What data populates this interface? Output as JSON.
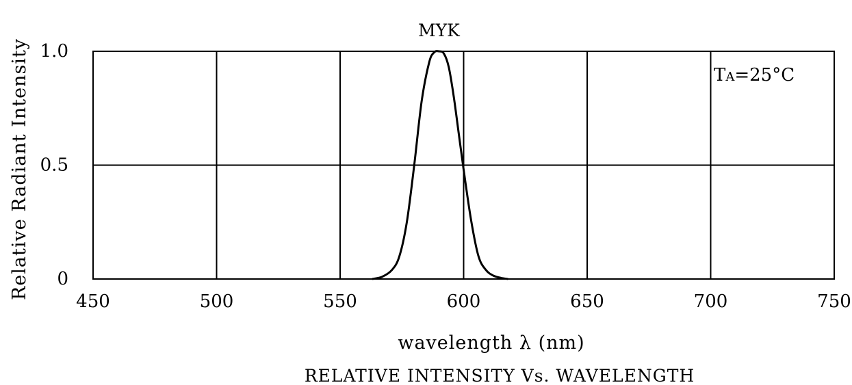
{
  "chart_data": {
    "type": "line",
    "title": "RELATIVE INTENSITY Vs. WAVELENGTH",
    "xlabel": "wavelength λ (nm)",
    "ylabel": "Relative Radiant Intensity",
    "xlim": [
      450,
      750
    ],
    "ylim": [
      0,
      1.0
    ],
    "x_ticks": [
      "450",
      "500",
      "550",
      "600",
      "650",
      "700",
      "750"
    ],
    "y_ticks": [
      "0",
      "0.5",
      "1.0"
    ],
    "x_tick_values": [
      450,
      500,
      550,
      600,
      650,
      700,
      750
    ],
    "y_tick_values": [
      0,
      0.5,
      1.0
    ],
    "grid": true,
    "annotation": {
      "main": "T",
      "sub": "A",
      "rest": "=25°C"
    },
    "series": [
      {
        "name": "MYK",
        "x": [
          563,
          567,
          571,
          574,
          577,
          580,
          583,
          586,
          588,
          590,
          592,
          594,
          596,
          598,
          600,
          603,
          606,
          609,
          612,
          615,
          618
        ],
        "y": [
          0.0,
          0.01,
          0.04,
          0.1,
          0.25,
          0.5,
          0.78,
          0.95,
          0.995,
          1.0,
          0.99,
          0.93,
          0.8,
          0.64,
          0.48,
          0.26,
          0.1,
          0.04,
          0.015,
          0.005,
          0.0
        ]
      }
    ]
  }
}
